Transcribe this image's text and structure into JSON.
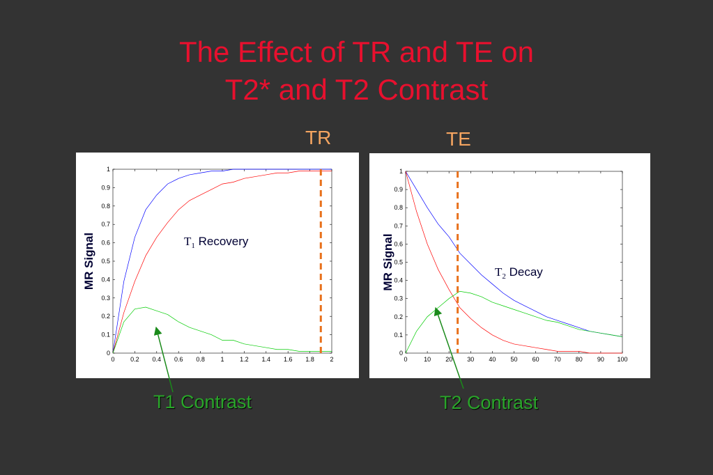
{
  "title": {
    "line1": "The Effect of TR and TE on",
    "line2": "T2* and T2 Contrast"
  },
  "labels": {
    "tr": "TR",
    "te": "TE",
    "t1_contrast": "T1 Contrast",
    "t2_contrast": "T2 Contrast"
  },
  "colors": {
    "title": "#e8102e",
    "tr_te": "#f4a460",
    "contrast_label": "#2aa52a",
    "marker_line": "#e8711c",
    "series_blue": "#0000ff",
    "series_red": "#ff0000",
    "series_green": "#00cc00"
  },
  "chart_data": [
    {
      "type": "line",
      "ylabel": "MR Signal",
      "annotation": {
        "main": "T",
        "sub": "1",
        "rest": " Recovery"
      },
      "xlim": [
        0,
        2
      ],
      "ylim": [
        0,
        1
      ],
      "xticks": [
        "0",
        "0.2",
        "0.4",
        "0.6",
        "0.8",
        "1",
        "1.2",
        "1.4",
        "1.6",
        "1.8",
        "2"
      ],
      "yticks": [
        "0",
        "0.1",
        "0.2",
        "0.3",
        "0.4",
        "0.5",
        "0.6",
        "0.7",
        "0.8",
        "0.9",
        "1"
      ],
      "marker_x": 1.9,
      "x": [
        0,
        0.1,
        0.2,
        0.3,
        0.4,
        0.5,
        0.6,
        0.7,
        0.8,
        0.9,
        1.0,
        1.1,
        1.2,
        1.3,
        1.4,
        1.5,
        1.6,
        1.7,
        1.8,
        1.9,
        2.0
      ],
      "series": [
        {
          "color": "blue",
          "values": [
            0,
            0.39,
            0.63,
            0.78,
            0.86,
            0.92,
            0.95,
            0.97,
            0.98,
            0.99,
            0.99,
            1,
            1,
            1,
            1,
            1,
            1,
            1,
            1,
            1,
            1
          ]
        },
        {
          "color": "red",
          "values": [
            0,
            0.22,
            0.39,
            0.53,
            0.63,
            0.71,
            0.78,
            0.83,
            0.86,
            0.89,
            0.92,
            0.93,
            0.95,
            0.96,
            0.97,
            0.98,
            0.98,
            0.99,
            0.99,
            0.99,
            0.99
          ]
        },
        {
          "color": "green",
          "values": [
            0,
            0.17,
            0.24,
            0.25,
            0.23,
            0.21,
            0.17,
            0.14,
            0.12,
            0.1,
            0.07,
            0.07,
            0.05,
            0.04,
            0.03,
            0.02,
            0.02,
            0.01,
            0.01,
            0.01,
            0.01
          ]
        }
      ]
    },
    {
      "type": "line",
      "ylabel": "MR Signal",
      "annotation": {
        "main": "T",
        "sub": "2",
        "rest": " Decay"
      },
      "xlim": [
        0,
        100
      ],
      "ylim": [
        0,
        1
      ],
      "xticks": [
        "0",
        "10",
        "20",
        "30",
        "40",
        "50",
        "60",
        "70",
        "80",
        "90",
        "100"
      ],
      "yticks": [
        "0",
        "0.1",
        "0.2",
        "0.3",
        "0.4",
        "0.5",
        "0.6",
        "0.7",
        "0.8",
        "0.9",
        "1"
      ],
      "marker_x": 24,
      "x": [
        0,
        5,
        10,
        15,
        20,
        25,
        30,
        35,
        40,
        45,
        50,
        55,
        60,
        65,
        70,
        75,
        80,
        85,
        90,
        95,
        100
      ],
      "series": [
        {
          "color": "blue",
          "values": [
            1,
            0.9,
            0.8,
            0.71,
            0.64,
            0.55,
            0.49,
            0.43,
            0.38,
            0.33,
            0.29,
            0.26,
            0.23,
            0.2,
            0.18,
            0.16,
            0.14,
            0.12,
            0.11,
            0.1,
            0.09
          ]
        },
        {
          "color": "red",
          "values": [
            1,
            0.78,
            0.6,
            0.46,
            0.35,
            0.25,
            0.19,
            0.14,
            0.1,
            0.07,
            0.05,
            0.04,
            0.03,
            0.02,
            0.01,
            0.01,
            0.01,
            0,
            0,
            0,
            0
          ]
        },
        {
          "color": "green",
          "values": [
            0,
            0.12,
            0.2,
            0.25,
            0.3,
            0.34,
            0.33,
            0.31,
            0.28,
            0.26,
            0.24,
            0.22,
            0.2,
            0.18,
            0.17,
            0.15,
            0.13,
            0.12,
            0.11,
            0.1,
            0.09
          ]
        }
      ]
    }
  ]
}
